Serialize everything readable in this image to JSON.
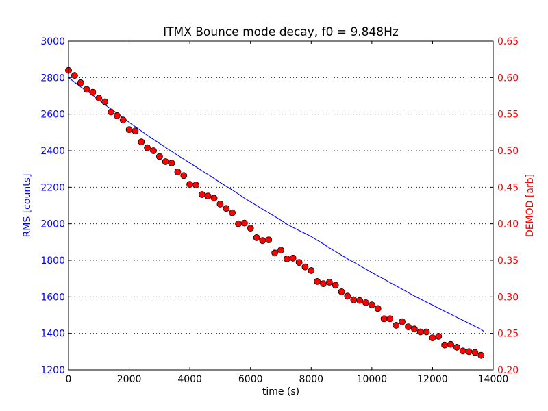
{
  "chart_data": {
    "type": "line",
    "title": "ITMX Bounce mode decay, f0 = 9.848Hz",
    "xlabel": "time (s)",
    "ylabel_left": "RMS [counts]",
    "ylabel_right": "DEMOD [arb]",
    "xlim": [
      0,
      14000
    ],
    "ylim_left": [
      1200,
      3000
    ],
    "ylim_right": [
      0.2,
      0.65
    ],
    "x_ticks": [
      "0",
      "2000",
      "4000",
      "6000",
      "8000",
      "10000",
      "12000",
      "14000"
    ],
    "y_ticks_left": [
      "1200",
      "1400",
      "1600",
      "1800",
      "2000",
      "2200",
      "2400",
      "2600",
      "2800",
      "3000"
    ],
    "y_ticks_right": [
      "0.20",
      "0.25",
      "0.30",
      "0.35",
      "0.40",
      "0.45",
      "0.50",
      "0.55",
      "0.60",
      "0.65"
    ],
    "grid": "horizontal dotted",
    "colors": {
      "left_axis": "#0000ff",
      "right_axis": "#ff0000",
      "marker_fill": "#ff0000",
      "marker_edge": "#000000",
      "line": "#0000ff"
    },
    "series": [
      {
        "axis": "left",
        "style": "line",
        "x": [
          0,
          200,
          400,
          600,
          800,
          1000,
          1200,
          1400,
          1600,
          1800,
          2000,
          2200,
          2400,
          2600,
          2800,
          3000,
          3200,
          3400,
          3600,
          3800,
          4000,
          4200,
          4400,
          4600,
          4800,
          5000,
          5200,
          5400,
          5600,
          5800,
          6000,
          6200,
          6400,
          6600,
          6800,
          7000,
          7200,
          7400,
          7600,
          7800,
          8000,
          8200,
          8400,
          8600,
          8800,
          9000,
          9200,
          9400,
          9600,
          9800,
          10000,
          10200,
          10400,
          10600,
          10800,
          11000,
          11200,
          11400,
          11600,
          11800,
          12000,
          12200,
          12400,
          12600,
          12800,
          13000,
          13200,
          13400,
          13600,
          13700
        ],
        "values": [
          2800,
          2775,
          2750,
          2728,
          2705,
          2678,
          2652,
          2628,
          2605,
          2580,
          2555,
          2532,
          2508,
          2484,
          2462,
          2440,
          2418,
          2396,
          2375,
          2354,
          2333,
          2312,
          2290,
          2270,
          2248,
          2226,
          2205,
          2185,
          2163,
          2140,
          2120,
          2100,
          2080,
          2060,
          2040,
          2020,
          1998,
          1980,
          1963,
          1947,
          1930,
          1910,
          1890,
          1868,
          1848,
          1828,
          1808,
          1790,
          1771,
          1752,
          1733,
          1714,
          1697,
          1678,
          1660,
          1642,
          1623,
          1605,
          1588,
          1571,
          1555,
          1538,
          1521,
          1505,
          1488,
          1472,
          1455,
          1438,
          1422,
          1410
        ]
      },
      {
        "axis": "right",
        "style": "markers",
        "x": [
          0,
          200,
          400,
          600,
          800,
          1000,
          1200,
          1400,
          1600,
          1800,
          2000,
          2200,
          2400,
          2600,
          2800,
          3000,
          3200,
          3400,
          3600,
          3800,
          4000,
          4200,
          4400,
          4600,
          4800,
          5000,
          5200,
          5400,
          5600,
          5800,
          6000,
          6200,
          6400,
          6600,
          6800,
          7000,
          7200,
          7400,
          7600,
          7800,
          8000,
          8200,
          8400,
          8600,
          8800,
          9000,
          9200,
          9400,
          9600,
          9800,
          10000,
          10200,
          10400,
          10600,
          10800,
          11000,
          11200,
          11400,
          11600,
          11800,
          12000,
          12200,
          12400,
          12600,
          12800,
          13000,
          13200,
          13400,
          13600
        ],
        "values": [
          0.61,
          0.603,
          0.593,
          0.584,
          0.58,
          0.572,
          0.567,
          0.553,
          0.548,
          0.542,
          0.529,
          0.527,
          0.512,
          0.504,
          0.5,
          0.492,
          0.485,
          0.483,
          0.471,
          0.466,
          0.454,
          0.453,
          0.44,
          0.438,
          0.435,
          0.427,
          0.421,
          0.415,
          0.4,
          0.401,
          0.394,
          0.381,
          0.377,
          0.378,
          0.36,
          0.364,
          0.352,
          0.353,
          0.347,
          0.341,
          0.336,
          0.321,
          0.318,
          0.32,
          0.316,
          0.307,
          0.301,
          0.296,
          0.295,
          0.292,
          0.289,
          0.284,
          0.27,
          0.27,
          0.261,
          0.266,
          0.259,
          0.256,
          0.252,
          0.252,
          0.244,
          0.246,
          0.234,
          0.235,
          0.231,
          0.226,
          0.225,
          0.224,
          0.22
        ]
      }
    ]
  }
}
